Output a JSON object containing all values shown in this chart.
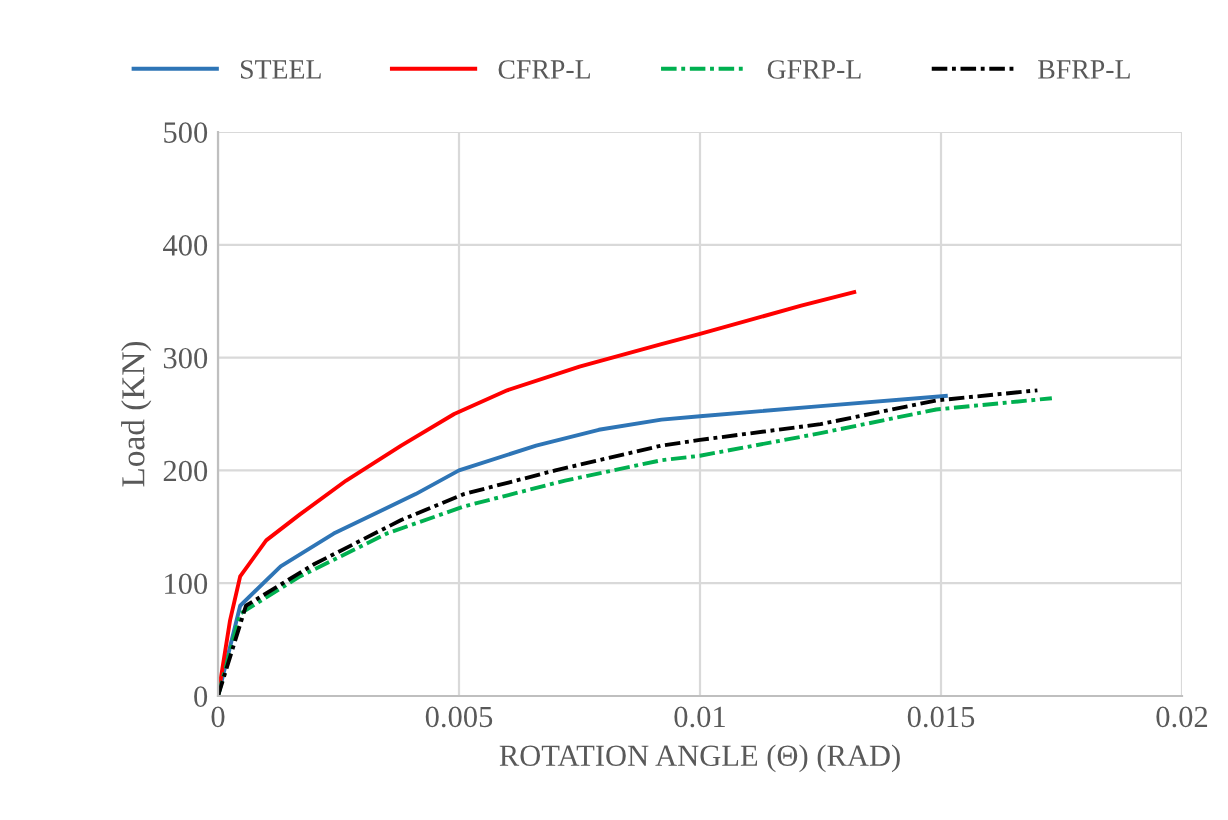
{
  "chart_data": {
    "type": "line",
    "xlabel": "ROTATION ANGLE (Θ) (RAD)",
    "ylabel": "Load (KN)",
    "xlim": [
      0,
      0.02
    ],
    "xticks": [
      0,
      0.005,
      0.01,
      0.015,
      0.02
    ],
    "ylim": [
      0,
      500
    ],
    "yticks": [
      0,
      100,
      200,
      300,
      400,
      500
    ],
    "grid": true,
    "legend": "top",
    "marker": "none",
    "series": [
      {
        "name": "STEEL",
        "color": "#2e75b6",
        "line_style": "solid",
        "x": [
          0,
          0.00046,
          0.0013,
          0.0024,
          0.0041,
          0.005,
          0.0066,
          0.0079,
          0.0092,
          0.01,
          0.0125,
          0.0151
        ],
        "values": [
          0,
          80,
          115,
          144,
          179,
          200,
          222,
          236,
          245,
          248,
          257,
          266
        ]
      },
      {
        "name": "CFRP-L",
        "color": "#ff0000",
        "line_style": "solid",
        "x": [
          0,
          0.00025,
          0.00046,
          0.001,
          0.0017,
          0.00266,
          0.0038,
          0.0049,
          0.006,
          0.0075,
          0.0092,
          0.01,
          0.0121,
          0.0132
        ],
        "values": [
          0,
          67,
          106,
          138,
          161,
          191,
          222,
          250,
          271,
          292,
          312,
          321,
          346,
          358
        ]
      },
      {
        "name": "GFRP-L",
        "color": "#00b050",
        "line_style": "dashed",
        "x": [
          0,
          0.00046,
          0.0017,
          0.0035,
          0.0051,
          0.0072,
          0.0092,
          0.01,
          0.0125,
          0.0149,
          0.0173
        ],
        "values": [
          0,
          73,
          106,
          144,
          168,
          191,
          209,
          213,
          233,
          254,
          264
        ]
      },
      {
        "name": "BFRP-L",
        "color": "#000000",
        "line_style": "dashed",
        "x": [
          0,
          0.00058,
          0.002,
          0.0038,
          0.0051,
          0.007,
          0.0092,
          0.01,
          0.0125,
          0.0149,
          0.017
        ],
        "values": [
          0,
          80,
          117,
          156,
          179,
          200,
          222,
          227,
          241,
          262,
          271
        ]
      }
    ]
  }
}
